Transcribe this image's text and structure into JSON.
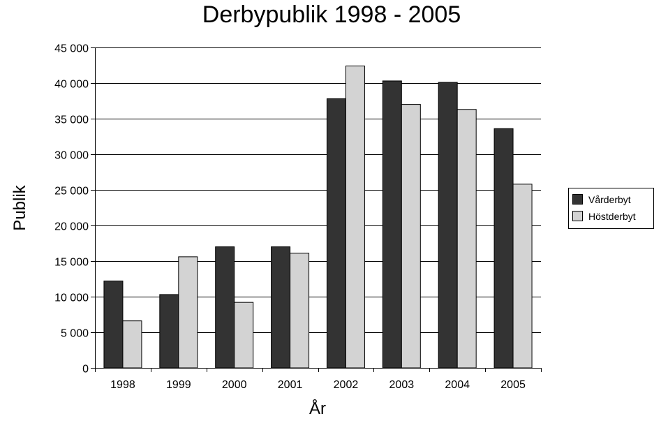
{
  "chart_data": {
    "type": "bar",
    "title": "Derbypublik 1998 - 2005",
    "xlabel": "År",
    "ylabel": "Publik",
    "categories": [
      "1998",
      "1999",
      "2000",
      "2001",
      "2002",
      "2003",
      "2004",
      "2005"
    ],
    "series": [
      {
        "name": "Vårderbyt",
        "color": "#333333",
        "values": [
          12200,
          10300,
          17000,
          17000,
          37800,
          40300,
          40100,
          33600
        ]
      },
      {
        "name": "Höstderbyt",
        "color": "#d3d3d3",
        "values": [
          6600,
          15600,
          9200,
          16100,
          42400,
          37000,
          36300,
          25800
        ]
      }
    ],
    "ylim": [
      0,
      45000
    ],
    "yticks": [
      0,
      5000,
      10000,
      15000,
      20000,
      25000,
      30000,
      35000,
      40000,
      45000
    ],
    "ytick_labels": [
      "0",
      "5 000",
      "10 000",
      "15 000",
      "20 000",
      "25 000",
      "30 000",
      "35 000",
      "40 000",
      "45 000"
    ],
    "grid": true,
    "legend_position": "right"
  }
}
